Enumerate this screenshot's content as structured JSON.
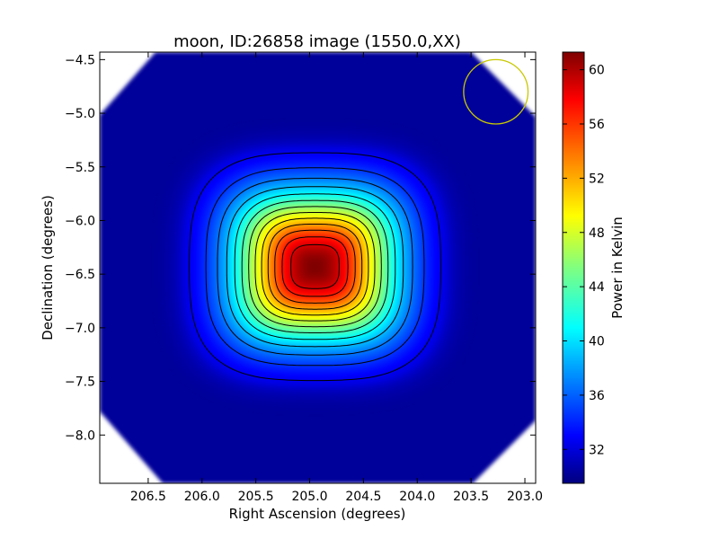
{
  "chart_data": {
    "type": "heatmap",
    "title": "moon, ID:26858 image (1550.0,XX)",
    "xlabel": "Right Ascension (degrees)",
    "ylabel": "Declination (degrees)",
    "colorbar_label": "Power in Kelvin",
    "colormap": "jet",
    "xlim": [
      206.95,
      202.9
    ],
    "ylim": [
      -8.45,
      -4.43
    ],
    "x_ticks": [
      206.5,
      206.0,
      205.5,
      205.0,
      204.5,
      204.0,
      203.5,
      203.0
    ],
    "x_tick_labels": [
      "206.5",
      "206.0",
      "205.5",
      "205.0",
      "204.5",
      "204.0",
      "203.5",
      "203.0"
    ],
    "y_ticks": [
      -4.5,
      -5.0,
      -5.5,
      -6.0,
      -6.5,
      -7.0,
      -7.5,
      -8.0
    ],
    "y_tick_labels": [
      "−4.5",
      "−5.0",
      "−5.5",
      "−6.0",
      "−6.5",
      "−7.0",
      "−7.5",
      "−8.0"
    ],
    "colorbar_range": [
      29.5,
      61.3
    ],
    "colorbar_ticks": [
      32,
      36,
      40,
      44,
      48,
      52,
      56,
      60
    ],
    "colorbar_tick_labels": [
      "32",
      "36",
      "40",
      "44",
      "48",
      "52",
      "56",
      "60"
    ],
    "background_value": 30.5,
    "source_peak": {
      "ra": 204.95,
      "dec": -6.43,
      "value": 61.3
    },
    "source_extent": {
      "ra_sigma": 0.55,
      "dec_sigma": 0.5
    },
    "contour_count": 13,
    "beam_circle": {
      "ra": 203.27,
      "dec": -4.8,
      "radius_deg": 0.3,
      "color": "#c8c800"
    },
    "blank_corner_color": "#ffffff"
  }
}
